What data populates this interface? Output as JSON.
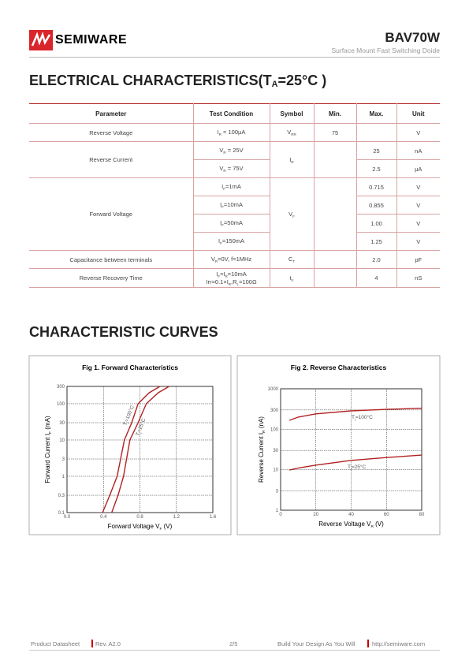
{
  "header": {
    "brand": "SEMIWARE",
    "part": "BAV70W",
    "subtitle": "Surface Mount Fast Switching Doide"
  },
  "section1": {
    "title": [
      "ELECTRICAL CHARACTERISTICS(T",
      {
        "sub": "A"
      },
      "=25°C )"
    ]
  },
  "table": {
    "headers": [
      "Parameter",
      "Test Condition",
      "Symbol",
      "Min.",
      "Max.",
      "Unit"
    ],
    "groups": [
      {
        "parameter": "Reverse Voltage",
        "symbol": [
          "V",
          {
            "sub": "RR"
          }
        ],
        "min": "75",
        "lines": [
          {
            "condition": [
              [
                "I",
                {
                  "sub": "R"
                },
                " = 100μA"
              ]
            ],
            "unit": "V"
          }
        ]
      },
      {
        "parameter": "Reverse Current",
        "symbol": [
          "I",
          {
            "sub": "R"
          }
        ],
        "lines": [
          {
            "condition": [
              [
                "V",
                {
                  "sub": "R"
                },
                " = 25V"
              ]
            ],
            "max": "25",
            "unit": "nA"
          },
          {
            "condition": [
              [
                "V",
                {
                  "sub": "R"
                },
                " = 75V"
              ]
            ],
            "max": "2.5",
            "unit": "μA"
          }
        ]
      },
      {
        "parameter": "Forward Voltage",
        "symbol": [
          "V",
          {
            "sub": "F"
          }
        ],
        "lines": [
          {
            "condition": [
              [
                "I",
                {
                  "sub": "F"
                },
                "=1mA"
              ]
            ],
            "max": "0.715",
            "unit": "V"
          },
          {
            "condition": [
              [
                "I",
                {
                  "sub": "F"
                },
                "=10mA"
              ]
            ],
            "max": "0.855",
            "unit": "V"
          },
          {
            "condition": [
              [
                "I",
                {
                  "sub": "F"
                },
                "=50mA"
              ]
            ],
            "max": "1.00",
            "unit": "V"
          },
          {
            "condition": [
              [
                "I",
                {
                  "sub": "F"
                },
                "=150mA"
              ]
            ],
            "max": "1.25",
            "unit": "V"
          }
        ]
      },
      {
        "parameter": "Capacitance between terminals",
        "symbol": [
          "C",
          {
            "sub": "T"
          }
        ],
        "lines": [
          {
            "condition": [
              [
                "V",
                {
                  "sub": "R"
                },
                "=0V, f=1MHz"
              ]
            ],
            "max": "2.0",
            "unit": "pF"
          }
        ]
      },
      {
        "parameter": "Reverse Recovery Time",
        "symbol": [
          "t",
          {
            "sub": "rr"
          }
        ],
        "lines": [
          {
            "condition": [
              [
                "I",
                {
                  "sub": "F"
                },
                "=I",
                {
                  "sub": "R"
                },
                "=10mA"
              ],
              [
                "Irr=0.1×I",
                {
                  "sub": "R"
                },
                ",R",
                {
                  "sub": "L"
                },
                "=100Ω"
              ]
            ],
            "max": "4",
            "unit": "nS"
          }
        ]
      }
    ]
  },
  "section2": {
    "title": "CHARACTERISTIC CURVES"
  },
  "chart_data": [
    {
      "type": "line",
      "title": "Fig 1. Forward Characteristics",
      "log_y": true,
      "grid": true,
      "color": "#b22222",
      "xlabel": [
        "Forward Voltage V",
        {
          "sub": "F"
        },
        " (V)"
      ],
      "ylabel": [
        "Forward Current I",
        {
          "sub": "F"
        },
        " (mA)"
      ],
      "xlim": [
        0,
        1.6
      ],
      "xticks": [
        {
          "value": 0,
          "label": "0.0"
        },
        0.4,
        0.8,
        1.2,
        1.6
      ],
      "ylim": [
        0.1,
        300
      ],
      "yticks": [
        0.1,
        0.3,
        1,
        3,
        10,
        30,
        100,
        300
      ],
      "series": [
        {
          "label": [
            "T",
            {
              "sub": "j"
            },
            "=100°C"
          ],
          "x": [
            0.39,
            0.47,
            0.55,
            0.63,
            0.71,
            0.78,
            0.9,
            1.02
          ],
          "values": [
            0.1,
            0.3,
            1,
            10,
            30,
            100,
            200,
            300
          ]
        },
        {
          "label": [
            "T",
            {
              "sub": "j"
            },
            "=25°C"
          ],
          "x": [
            0.49,
            0.56,
            0.62,
            0.69,
            0.78,
            0.87,
            1.0,
            1.12
          ],
          "values": [
            0.1,
            0.3,
            1,
            10,
            30,
            100,
            200,
            300
          ]
        }
      ]
    },
    {
      "type": "line",
      "title": "Fig 2. Reverse Characteristics",
      "log_y": true,
      "grid": true,
      "color": "#b22222",
      "xlabel": [
        "Reverse Voltage V",
        {
          "sub": "R"
        },
        " (V)"
      ],
      "ylabel": [
        "Reverse Current I",
        {
          "sub": "R"
        },
        " (nA)"
      ],
      "xlim": [
        0,
        80
      ],
      "xticks": [
        0,
        20,
        40,
        60,
        80
      ],
      "ylim": [
        1,
        1000
      ],
      "yticks": [
        1,
        3,
        10,
        30,
        100,
        300,
        1000
      ],
      "series": [
        {
          "label": [
            "T",
            {
              "sub": "j"
            },
            "=100°C"
          ],
          "x": [
            5,
            10,
            20,
            40,
            60,
            80
          ],
          "values": [
            166,
            200,
            240,
            285,
            310,
            330
          ]
        },
        {
          "label": [
            "T",
            {
              "sub": "j"
            },
            "=25°C"
          ],
          "x": [
            5,
            10,
            20,
            40,
            60,
            80
          ],
          "values": [
            9.8,
            11,
            13,
            17,
            20,
            23
          ]
        }
      ]
    }
  ],
  "footer": {
    "doc": "Product Datasheet",
    "rev": "Rev. A2.0",
    "page": "2/5",
    "slogan": "Build Your Design As You Will",
    "url": "http://semiware.com"
  }
}
